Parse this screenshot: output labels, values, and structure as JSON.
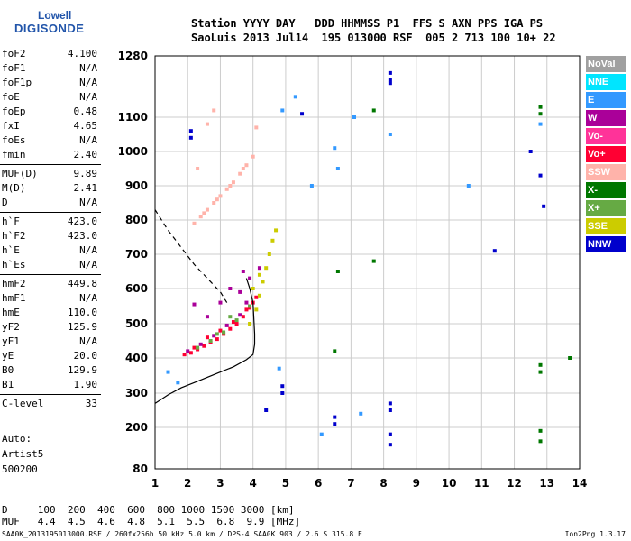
{
  "logo": {
    "line1": "Lowell",
    "line2": "DIGISONDE"
  },
  "header": {
    "line1": "Station YYYY DAY   DDD HHMMSS P1  FFS S AXN PPS IGA PS",
    "line2": "SaoLuis 2013 Jul14  195 013000 RSF  005 2 713 100 10+ 22"
  },
  "params_group1": [
    {
      "k": "foF2",
      "v": "4.100"
    },
    {
      "k": "foF1",
      "v": "N/A"
    },
    {
      "k": "foF1p",
      "v": "N/A"
    },
    {
      "k": "foE",
      "v": "N/A"
    },
    {
      "k": "foEp",
      "v": "0.48"
    },
    {
      "k": "fxI",
      "v": "4.65"
    },
    {
      "k": "foEs",
      "v": "N/A"
    },
    {
      "k": "fmin",
      "v": "2.40"
    }
  ],
  "params_group2": [
    {
      "k": "MUF(D)",
      "v": "9.89"
    },
    {
      "k": "M(D)",
      "v": "2.41"
    },
    {
      "k": "D",
      "v": "N/A"
    }
  ],
  "params_group3": [
    {
      "k": "h`F",
      "v": "423.0"
    },
    {
      "k": "h`F2",
      "v": "423.0"
    },
    {
      "k": "h`E",
      "v": "N/A"
    },
    {
      "k": "h`Es",
      "v": "N/A"
    }
  ],
  "params_group4": [
    {
      "k": "hmF2",
      "v": "449.8"
    },
    {
      "k": "hmF1",
      "v": "N/A"
    },
    {
      "k": "hmE",
      "v": "110.0"
    },
    {
      "k": "yF2",
      "v": "125.9"
    },
    {
      "k": "yF1",
      "v": "N/A"
    },
    {
      "k": "yE",
      "v": "20.0"
    },
    {
      "k": "B0",
      "v": "129.9"
    },
    {
      "k": "B1",
      "v": "1.90"
    }
  ],
  "params_group5": [
    {
      "k": "C-level",
      "v": "33"
    }
  ],
  "autoscale": {
    "line1": "Auto:",
    "line2": "Artist5",
    "line3": "500200"
  },
  "distance_table": {
    "line1": "D     100  200  400  600  800 1000 1500 3000 [km]",
    "line2": "MUF   4.4  4.5  4.6  4.8  5.1  5.5  6.8  9.9 [MHz]"
  },
  "footer": {
    "left": "SAA0K_2013195013000.RSF / 260fx256h 50 kHz 5.0 km / DPS-4 SAA0K 903 / 2.6 S 315.8 E",
    "right": "Ion2Png 1.3.17"
  },
  "legend": [
    {
      "label": "NoVal",
      "color": "#a0a0a0"
    },
    {
      "label": "NNE",
      "color": "#00e5ff"
    },
    {
      "label": "E",
      "color": "#3399ff"
    },
    {
      "label": "W",
      "color": "#aa0099"
    },
    {
      "label": "Vo-",
      "color": "#ff3399"
    },
    {
      "label": "Vo+",
      "color": "#ff0033"
    },
    {
      "label": "SSW",
      "color": "#ffb3aa"
    },
    {
      "label": "X-",
      "color": "#007700"
    },
    {
      "label": "X+",
      "color": "#66aa44"
    },
    {
      "label": "SSE",
      "color": "#cccc00"
    },
    {
      "label": "NNW",
      "color": "#0000cc"
    }
  ],
  "chart_data": {
    "type": "scatter",
    "xlabel": "",
    "ylabel": "",
    "xlim": [
      1,
      14
    ],
    "ylim": [
      80,
      1280
    ],
    "xticks": [
      1,
      2,
      3,
      4,
      5,
      6,
      7,
      8,
      9,
      10,
      11,
      12,
      13,
      14
    ],
    "yticks": [
      80,
      200,
      300,
      400,
      500,
      600,
      700,
      800,
      900,
      1000,
      1100,
      1280
    ],
    "grid": true,
    "series": [
      {
        "color": "#ff0033",
        "points": [
          [
            1.9,
            410
          ],
          [
            2.1,
            415
          ],
          [
            2.3,
            425
          ],
          [
            2.5,
            435
          ],
          [
            2.7,
            445
          ],
          [
            2.9,
            455
          ],
          [
            3.1,
            470
          ],
          [
            3.3,
            485
          ],
          [
            3.5,
            500
          ],
          [
            3.7,
            520
          ],
          [
            3.9,
            545
          ],
          [
            4.1,
            575
          ],
          [
            2.2,
            430
          ],
          [
            2.6,
            460
          ],
          [
            3.0,
            480
          ],
          [
            3.4,
            505
          ],
          [
            3.8,
            540
          ],
          [
            4.0,
            560
          ]
        ]
      },
      {
        "color": "#aa0099",
        "points": [
          [
            2.0,
            420
          ],
          [
            2.4,
            440
          ],
          [
            2.8,
            465
          ],
          [
            3.2,
            495
          ],
          [
            3.6,
            525
          ],
          [
            3.8,
            560
          ],
          [
            3.6,
            590
          ],
          [
            3.3,
            600
          ],
          [
            3.0,
            560
          ],
          [
            2.6,
            520
          ],
          [
            2.2,
            555
          ],
          [
            3.7,
            650
          ],
          [
            3.9,
            630
          ],
          [
            4.2,
            660
          ]
        ]
      },
      {
        "color": "#66aa44",
        "points": [
          [
            2.3,
            430
          ],
          [
            2.7,
            450
          ],
          [
            3.1,
            475
          ],
          [
            3.5,
            510
          ],
          [
            3.9,
            550
          ],
          [
            3.3,
            520
          ],
          [
            2.9,
            470
          ]
        ]
      },
      {
        "color": "#cccc00",
        "points": [
          [
            3.9,
            500
          ],
          [
            4.1,
            540
          ],
          [
            4.2,
            580
          ],
          [
            4.3,
            620
          ],
          [
            4.4,
            660
          ],
          [
            4.5,
            700
          ],
          [
            4.6,
            740
          ],
          [
            4.7,
            770
          ],
          [
            4.0,
            600
          ],
          [
            4.2,
            640
          ]
        ]
      },
      {
        "color": "#ffb3aa",
        "points": [
          [
            2.2,
            790
          ],
          [
            2.4,
            810
          ],
          [
            2.6,
            830
          ],
          [
            2.8,
            850
          ],
          [
            3.0,
            870
          ],
          [
            3.2,
            890
          ],
          [
            3.4,
            910
          ],
          [
            3.6,
            935
          ],
          [
            3.8,
            960
          ],
          [
            4.0,
            985
          ],
          [
            2.5,
            820
          ],
          [
            2.9,
            860
          ],
          [
            3.3,
            900
          ],
          [
            3.7,
            950
          ],
          [
            2.3,
            950
          ],
          [
            2.6,
            1080
          ],
          [
            2.8,
            1120
          ],
          [
            4.1,
            1070
          ]
        ]
      },
      {
        "color": "#3399ff",
        "points": [
          [
            5.8,
            900
          ],
          [
            6.5,
            1010
          ],
          [
            6.6,
            950
          ],
          [
            7.1,
            1100
          ],
          [
            8.2,
            1050
          ],
          [
            10.6,
            900
          ],
          [
            12.8,
            1080
          ],
          [
            4.9,
            1120
          ],
          [
            5.3,
            1160
          ],
          [
            1.7,
            330
          ],
          [
            1.4,
            360
          ],
          [
            7.3,
            240
          ],
          [
            4.8,
            370
          ],
          [
            6.1,
            180
          ]
        ]
      },
      {
        "color": "#0000cc",
        "points": [
          [
            2.1,
            1040
          ],
          [
            2.1,
            1060
          ],
          [
            4.4,
            250
          ],
          [
            4.9,
            300
          ],
          [
            4.9,
            320
          ],
          [
            5.5,
            1110
          ],
          [
            6.5,
            230
          ],
          [
            6.5,
            210
          ],
          [
            8.2,
            1200
          ],
          [
            8.2,
            1210
          ],
          [
            8.2,
            1230
          ],
          [
            8.2,
            270
          ],
          [
            8.2,
            250
          ],
          [
            8.2,
            180
          ],
          [
            8.2,
            150
          ],
          [
            11.4,
            710
          ],
          [
            12.8,
            930
          ],
          [
            12.9,
            840
          ],
          [
            12.5,
            1000
          ]
        ]
      },
      {
        "color": "#007700",
        "points": [
          [
            12.8,
            1110
          ],
          [
            12.8,
            1130
          ],
          [
            12.8,
            380
          ],
          [
            12.8,
            360
          ],
          [
            7.7,
            680
          ],
          [
            7.7,
            1120
          ],
          [
            13.7,
            400
          ],
          [
            12.8,
            190
          ],
          [
            12.8,
            160
          ],
          [
            6.5,
            420
          ],
          [
            6.6,
            650
          ]
        ]
      }
    ],
    "fit_curve_x": [
      1.0,
      1.4,
      1.8,
      2.2,
      2.6,
      3.0,
      3.4,
      3.8,
      4.0,
      4.05,
      4.05,
      4.0,
      3.9,
      3.8
    ],
    "fit_curve_y": [
      270,
      295,
      315,
      330,
      345,
      360,
      375,
      395,
      410,
      440,
      470,
      560,
      600,
      630
    ],
    "dashed_curve_x": [
      1.0,
      1.4,
      1.8,
      2.2,
      2.6,
      3.0,
      3.2
    ],
    "dashed_curve_y": [
      830,
      770,
      720,
      670,
      630,
      590,
      560
    ]
  }
}
